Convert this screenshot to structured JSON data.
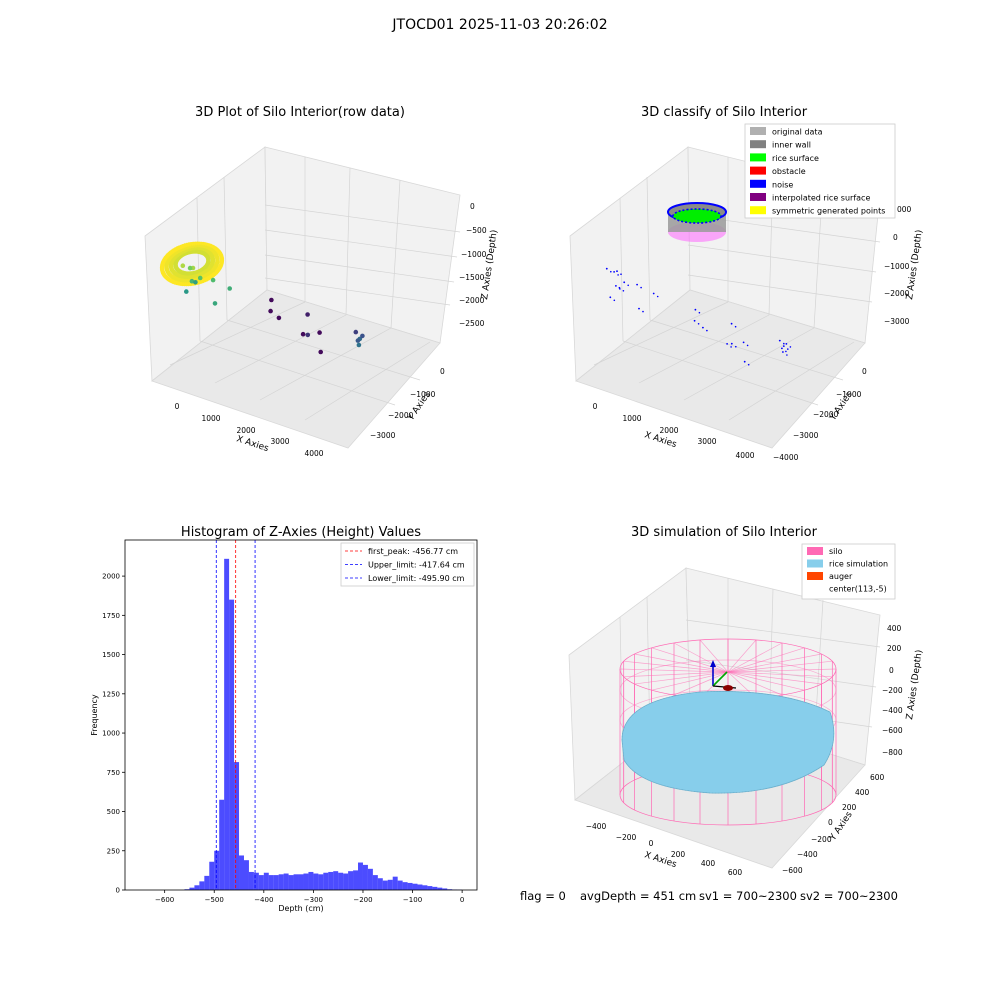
{
  "figure": {
    "suptitle": "JTOCD01 2025-11-03 20:26:02",
    "footer": {
      "flag": "flag = 0",
      "avg_depth": "avgDepth = 451 cm",
      "sv1": "sv1 = 700~2300",
      "sv2": "sv2 = 700~2300"
    }
  },
  "chart_data": [
    {
      "type": "scatter",
      "projection": "3d",
      "title": "3D Plot of Silo Interior(row data)",
      "xlabel": "X Axies",
      "ylabel": "Y Axies",
      "zlabel": "Z Axies (Depth)",
      "x_ticks": [
        "0",
        "1000",
        "2000",
        "3000",
        "4000"
      ],
      "y_ticks": [
        "0",
        "−1000",
        "−2000",
        "−3000"
      ],
      "z_ticks": [
        "0",
        "−500",
        "−1000",
        "−1500",
        "−2000",
        "−2500"
      ],
      "colormap": "viridis",
      "grid": true,
      "points": [
        {
          "x": 400,
          "y": 200,
          "z": -400
        },
        {
          "x": 600,
          "y": 100,
          "z": -450
        },
        {
          "x": 300,
          "y": -200,
          "z": -700
        },
        {
          "x": 500,
          "y": -300,
          "z": -900
        },
        {
          "x": 200,
          "y": -400,
          "z": -1100
        },
        {
          "x": 700,
          "y": -500,
          "z": -1000
        },
        {
          "x": 0,
          "y": -800,
          "z": -1400
        },
        {
          "x": 900,
          "y": -300,
          "z": -1300
        },
        {
          "x": -100,
          "y": -600,
          "z": -1500
        },
        {
          "x": 1000,
          "y": -700,
          "z": -1200
        },
        {
          "x": 3900,
          "y": -1500,
          "z": -2000
        },
        {
          "x": 3700,
          "y": -1800,
          "z": -2100
        },
        {
          "x": 3500,
          "y": -2000,
          "z": -2300
        },
        {
          "x": 3400,
          "y": -2300,
          "z": -2400
        },
        {
          "x": 3000,
          "y": -2600,
          "z": -2600
        },
        {
          "x": 2000,
          "y": -2200,
          "z": -2700
        },
        {
          "x": 1400,
          "y": -3000,
          "z": -2900
        },
        {
          "x": 1500,
          "y": -2700,
          "z": -3100
        },
        {
          "x": 1800,
          "y": -2900,
          "z": -3100
        },
        {
          "x": 2200,
          "y": -2400,
          "z": -3100
        },
        {
          "x": 200,
          "y": -3300,
          "z": -3100
        },
        {
          "x": 400,
          "y": -3000,
          "z": -3100
        },
        {
          "x": 700,
          "y": -2900,
          "z": -3100
        }
      ],
      "surface_ring": {
        "center_x": 500,
        "center_y": 0,
        "radius": 650,
        "z": -450
      }
    },
    {
      "type": "scatter",
      "projection": "3d",
      "title": "3D classify of Silo Interior",
      "xlabel": "X Axies",
      "ylabel": "Y Axies",
      "zlabel": "Z Axies (Depth)",
      "x_ticks": [
        "0",
        "1000",
        "2000",
        "3000",
        "4000"
      ],
      "y_ticks": [
        "0",
        "−1000",
        "−2000",
        "−3000",
        "−4000"
      ],
      "z_ticks": [
        "0",
        "−1000",
        "−2000",
        "−3000"
      ],
      "z_tick_partial": "000",
      "grid": true,
      "legend_position": "top-right",
      "legend": [
        {
          "name": "original data",
          "color": "#b0b0b0"
        },
        {
          "name": "inner wall",
          "color": "#808080"
        },
        {
          "name": "rice surface",
          "color": "#00ff00"
        },
        {
          "name": "obstacle",
          "color": "#ff0000"
        },
        {
          "name": "noise",
          "color": "#0000ff"
        },
        {
          "name": "interpolated rice surface",
          "color": "#800080"
        },
        {
          "name": "symmetric generated points",
          "color": "#ffff00"
        }
      ]
    },
    {
      "type": "bar",
      "title": "Histogram of Z-Axies (Height) Values",
      "xlabel": "Depth (cm)",
      "ylabel": "Frequency",
      "xlim": [
        -680,
        30
      ],
      "ylim": [
        0,
        2230
      ],
      "x_ticks": [
        -600,
        -500,
        -400,
        -300,
        -200,
        -100,
        0
      ],
      "y_ticks": [
        0,
        250,
        500,
        750,
        1000,
        1250,
        1500,
        1750,
        2000
      ],
      "bin_width": 10,
      "bar_color": "#0000ff",
      "bin_starts": [
        -560,
        -550,
        -540,
        -530,
        -520,
        -510,
        -500,
        -490,
        -480,
        -470,
        -460,
        -450,
        -440,
        -430,
        -420,
        -410,
        -400,
        -390,
        -380,
        -370,
        -360,
        -350,
        -340,
        -330,
        -320,
        -310,
        -300,
        -290,
        -280,
        -270,
        -260,
        -250,
        -240,
        -230,
        -220,
        -210,
        -200,
        -190,
        -180,
        -170,
        -160,
        -150,
        -140,
        -130,
        -120,
        -110,
        -100,
        -90,
        -80,
        -70,
        -60,
        -50,
        -40,
        -30,
        -20,
        -10
      ],
      "counts": [
        5,
        15,
        30,
        55,
        90,
        180,
        250,
        575,
        2110,
        1850,
        815,
        220,
        190,
        115,
        110,
        95,
        110,
        95,
        95,
        100,
        105,
        95,
        100,
        100,
        105,
        115,
        105,
        100,
        110,
        115,
        120,
        110,
        105,
        120,
        125,
        175,
        160,
        135,
        95,
        75,
        60,
        65,
        85,
        60,
        50,
        45,
        40,
        35,
        30,
        25,
        20,
        15,
        10,
        5,
        3,
        2
      ],
      "lines": [
        {
          "label": "first_peak: -456.77 cm",
          "value": -456.77,
          "color": "#ff0000"
        },
        {
          "label": "Upper_limit: -417.64 cm",
          "value": -417.64,
          "color": "#0000ff"
        },
        {
          "label": "Lower_limit: -495.90 cm",
          "value": -495.9,
          "color": "#0000ff"
        }
      ],
      "legend_position": "top-right"
    },
    {
      "type": "surface",
      "projection": "3d",
      "title": "3D simulation of Silo Interior",
      "xlabel": "X Axies",
      "ylabel": "Y Axies",
      "zlabel": "Z Axies (Depth)",
      "x_ticks": [
        "−400",
        "−200",
        "0",
        "200",
        "400",
        "600"
      ],
      "y_ticks": [
        "−600",
        "−400",
        "−200",
        "0",
        "200",
        "400",
        "600"
      ],
      "z_ticks": [
        "400",
        "200",
        "0",
        "−200",
        "−400",
        "−600",
        "−800"
      ],
      "grid": true,
      "legend_position": "top-right",
      "legend": [
        {
          "name": "silo",
          "color": "#ff69b4"
        },
        {
          "name": "rice simulation",
          "color": "#87ceeb"
        },
        {
          "name": "auger",
          "color": "#ff4500"
        },
        {
          "name": "center(113,-5)",
          "color": ""
        }
      ],
      "silo_color": "#ff69b4",
      "rice_color": "#87ceeb"
    }
  ]
}
